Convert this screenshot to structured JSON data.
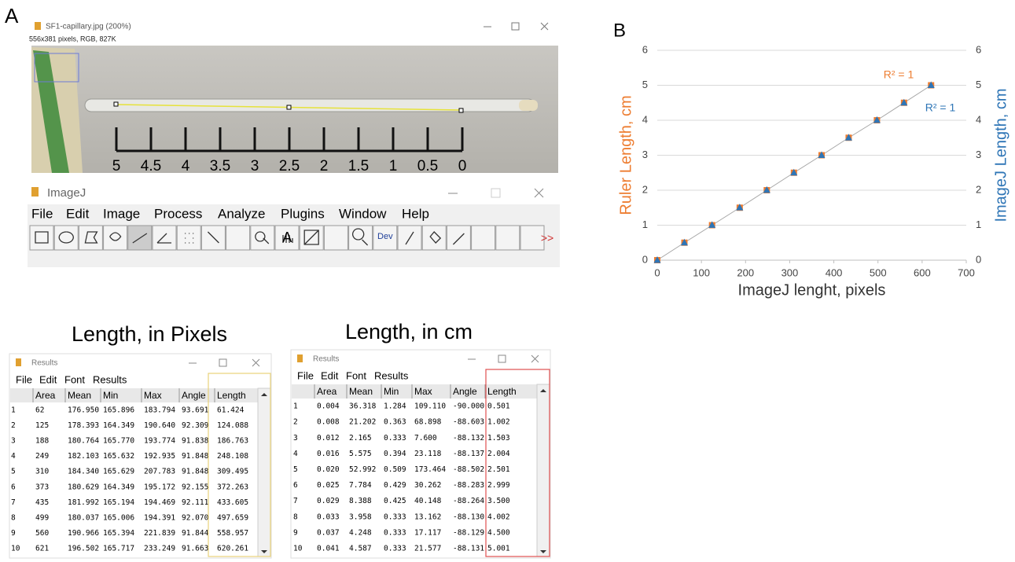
{
  "panel_a": {
    "label": "A",
    "image_window": {
      "title": "SF1-capillary.jpg (200%)",
      "info": "556x381 pixels, RGB, 827K",
      "ruler_labels": [
        "5",
        "4.5",
        "4",
        "3.5",
        "3",
        "2.5",
        "2",
        "1.5",
        "1",
        "0.5",
        "0"
      ]
    },
    "imagej_window": {
      "title": "ImageJ",
      "menu": [
        "File",
        "Edit",
        "Image",
        "Process",
        "Analyze",
        "Plugins",
        "Window",
        "Help"
      ],
      "tool_text": "A",
      "dev_text": "Dev",
      "more_text": ">>"
    }
  },
  "tables": [
    {
      "heading": "Length, in Pixels",
      "window_title": "Results",
      "menu": [
        "File",
        "Edit",
        "Font",
        "Results"
      ],
      "columns": [
        "Area",
        "Mean",
        "Min",
        "Max",
        "Angle",
        "Length"
      ],
      "rows": [
        [
          "1",
          "62",
          "176.950",
          "165.896",
          "183.794",
          "93.691",
          "61.424"
        ],
        [
          "2",
          "125",
          "178.393",
          "164.349",
          "190.640",
          "92.309",
          "124.088"
        ],
        [
          "3",
          "188",
          "180.764",
          "165.770",
          "193.774",
          "91.838",
          "186.763"
        ],
        [
          "4",
          "249",
          "182.103",
          "165.632",
          "192.935",
          "91.848",
          "248.108"
        ],
        [
          "5",
          "310",
          "184.340",
          "165.629",
          "207.783",
          "91.848",
          "309.495"
        ],
        [
          "6",
          "373",
          "180.629",
          "164.349",
          "195.172",
          "92.155",
          "372.263"
        ],
        [
          "7",
          "435",
          "181.992",
          "165.194",
          "194.469",
          "92.111",
          "433.605"
        ],
        [
          "8",
          "499",
          "180.037",
          "165.006",
          "194.391",
          "92.070",
          "497.659"
        ],
        [
          "9",
          "560",
          "190.966",
          "165.394",
          "221.839",
          "91.844",
          "558.957"
        ],
        [
          "10",
          "621",
          "196.502",
          "165.717",
          "233.249",
          "91.663",
          "620.261"
        ]
      ]
    },
    {
      "heading": "Length, in cm",
      "window_title": "Results",
      "menu": [
        "File",
        "Edit",
        "Font",
        "Results"
      ],
      "columns": [
        "Area",
        "Mean",
        "Min",
        "Max",
        "Angle",
        "Length"
      ],
      "rows": [
        [
          "1",
          "0.004",
          "36.318",
          "1.284",
          "109.110",
          "-90.000",
          "0.501"
        ],
        [
          "2",
          "0.008",
          "21.202",
          "0.363",
          "68.898",
          "-88.603",
          "1.002"
        ],
        [
          "3",
          "0.012",
          "2.165",
          "0.333",
          "7.600",
          "-88.132",
          "1.503"
        ],
        [
          "4",
          "0.016",
          "5.575",
          "0.394",
          "23.118",
          "-88.137",
          "2.004"
        ],
        [
          "5",
          "0.020",
          "52.992",
          "0.509",
          "173.464",
          "-88.502",
          "2.501"
        ],
        [
          "6",
          "0.025",
          "7.784",
          "0.429",
          "30.262",
          "-88.283",
          "2.999"
        ],
        [
          "7",
          "0.029",
          "8.388",
          "0.425",
          "40.148",
          "-88.264",
          "3.500"
        ],
        [
          "8",
          "0.033",
          "3.958",
          "0.333",
          "13.162",
          "-88.130",
          "4.002"
        ],
        [
          "9",
          "0.037",
          "4.248",
          "0.333",
          "17.117",
          "-88.129",
          "4.500"
        ],
        [
          "10",
          "0.041",
          "4.587",
          "0.333",
          "21.577",
          "-88.131",
          "5.001"
        ]
      ]
    }
  ],
  "panel_b": {
    "label": "B"
  },
  "chart_data": {
    "type": "scatter",
    "x_label": "ImageJ lenght, pixels",
    "y_label": "Ruler Length, cm",
    "y2_label": "ImageJ Length, cm",
    "x": [
      0,
      61.424,
      124.088,
      186.763,
      248.108,
      309.495,
      372.263,
      433.605,
      497.659,
      558.957,
      620.261
    ],
    "series": [
      {
        "color": "#ed7d31",
        "marker": "square",
        "values": [
          0,
          0.5,
          1,
          1.5,
          2,
          2.5,
          3,
          3.5,
          4,
          4.5,
          5
        ]
      },
      {
        "color": "#2e75b6",
        "marker": "triangle",
        "axis": "y2",
        "values": [
          0,
          0.501,
          1.002,
          1.503,
          2.004,
          2.501,
          2.999,
          3.5,
          4.002,
          4.5,
          5.001
        ]
      }
    ],
    "trendline_color": "#a6a6a6",
    "annotations": [
      {
        "text": "R² = 1",
        "color": "#ed7d31"
      },
      {
        "text": "R² = 1",
        "color": "#2e75b6"
      }
    ],
    "xlim": [
      0,
      700
    ],
    "xticks": [
      0,
      100,
      200,
      300,
      400,
      500,
      600,
      700
    ],
    "ylim": [
      0,
      6
    ],
    "yticks": [
      0,
      1,
      2,
      3,
      4,
      5,
      6
    ],
    "y2lim": [
      0,
      6
    ],
    "y2ticks": [
      0,
      1,
      2,
      3,
      4,
      5,
      6
    ],
    "grid": true
  }
}
